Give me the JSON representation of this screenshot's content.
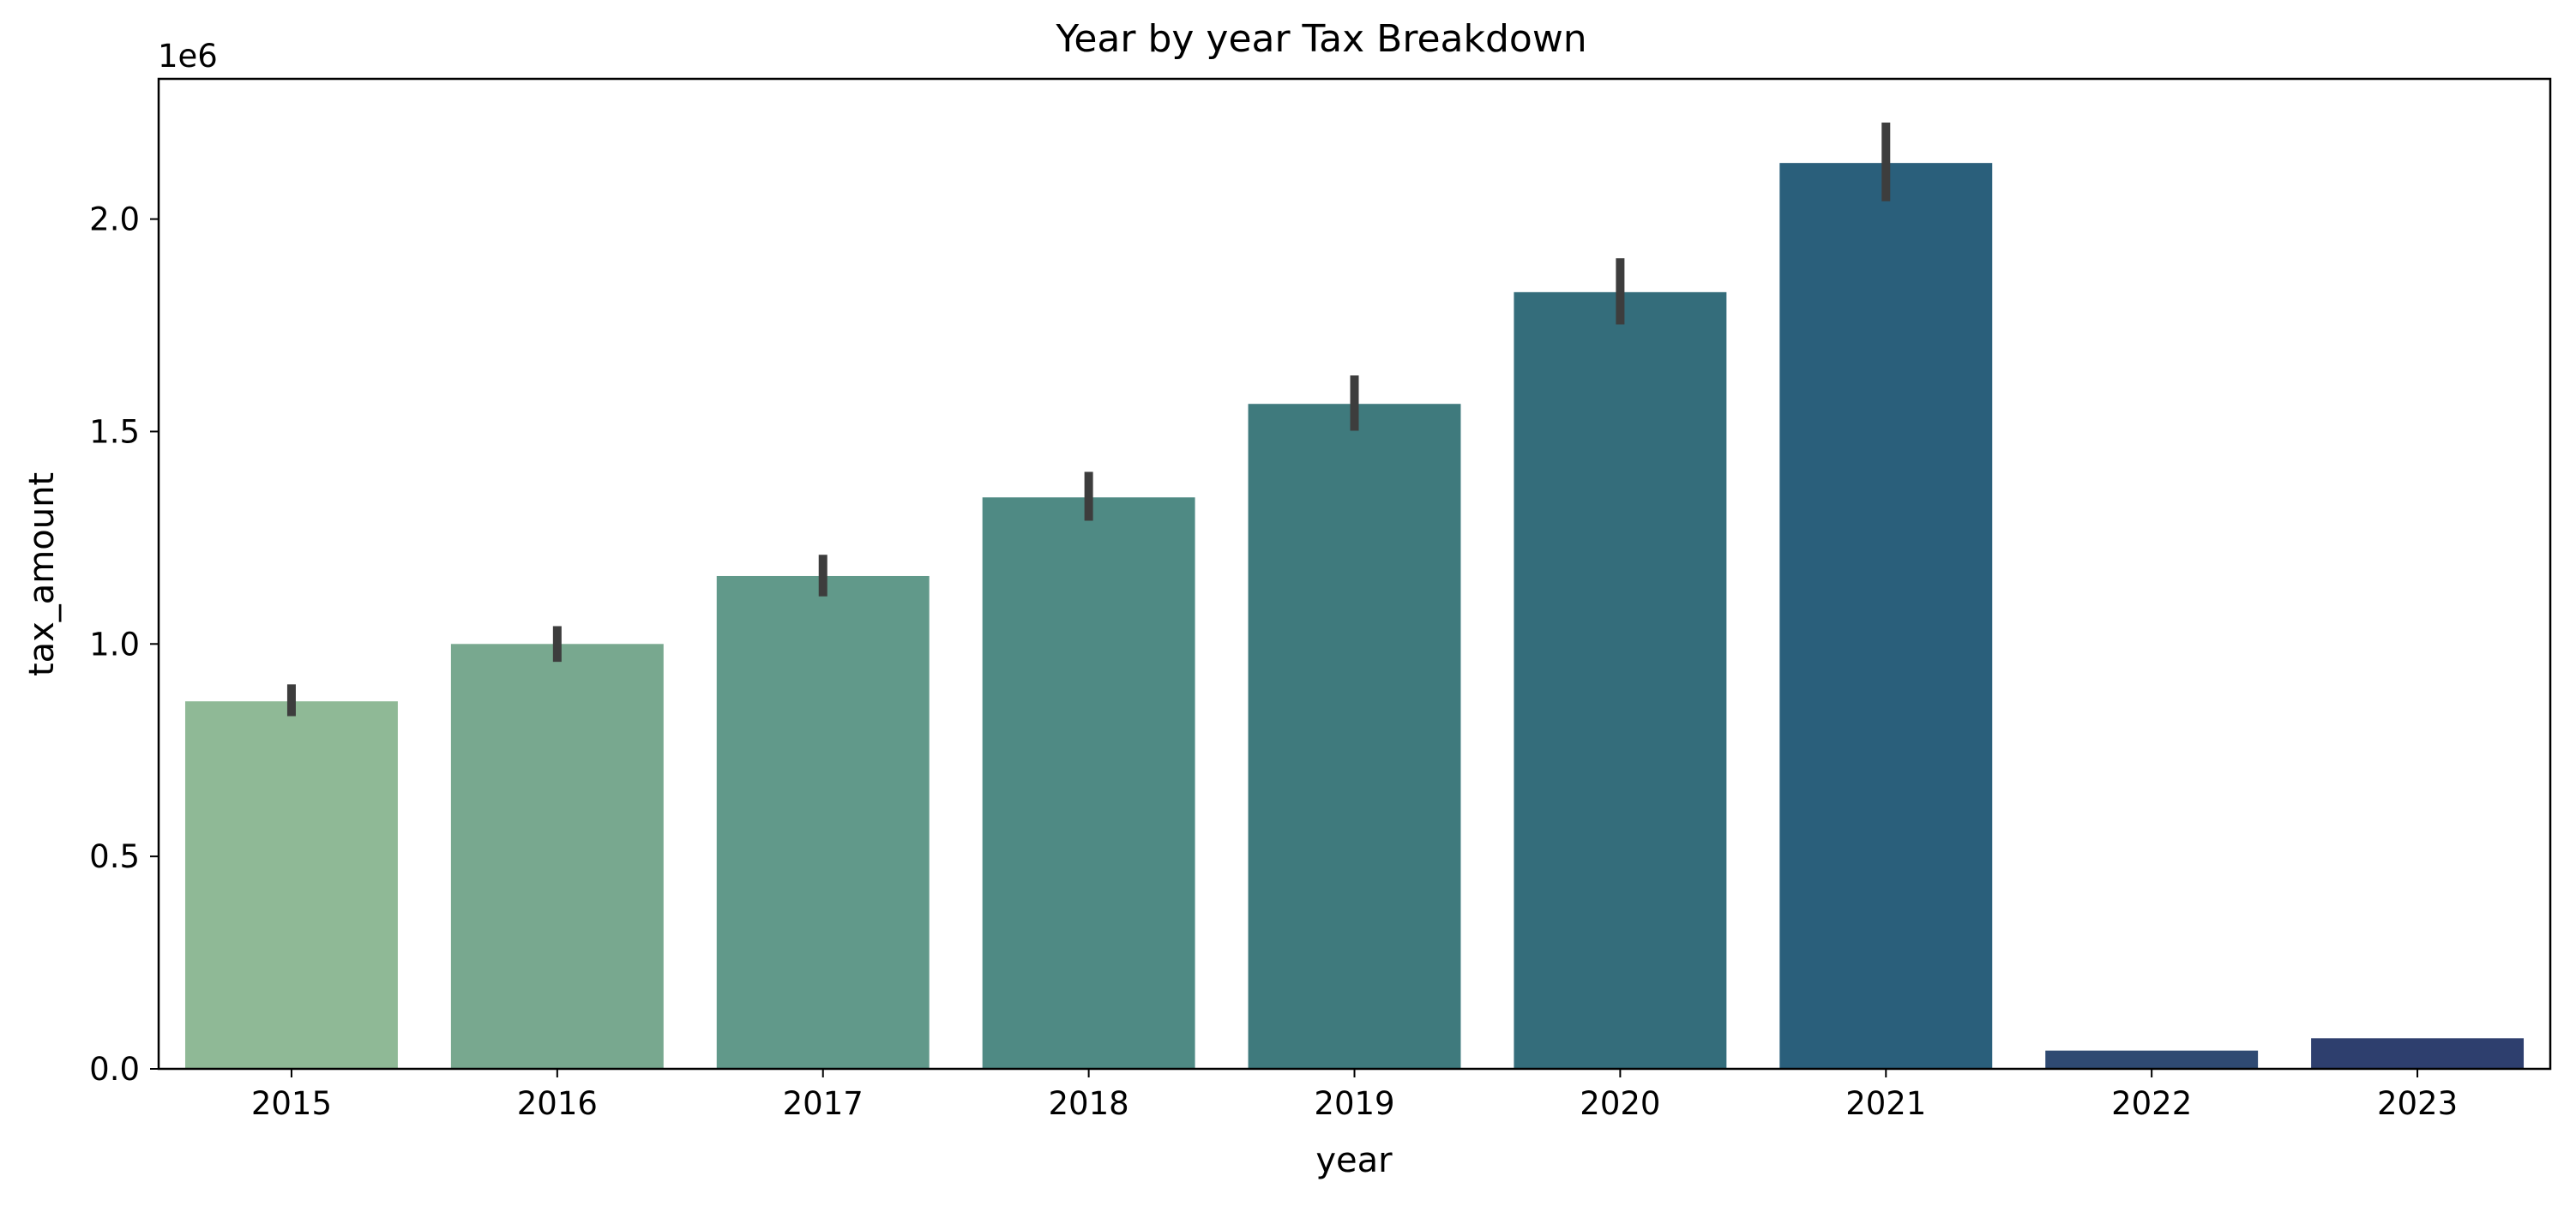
{
  "chart_data": {
    "type": "bar",
    "title": "Year by year Tax Breakdown",
    "xlabel": "year",
    "ylabel": "tax_amount",
    "y_offset_label": "1e6",
    "ylim": [
      0,
      2.33
    ],
    "yticks": [
      0.0,
      0.5,
      1.0,
      1.5,
      2.0
    ],
    "ytick_labels": [
      "0.0",
      "0.5",
      "1.0",
      "1.5",
      "2.0"
    ],
    "categories": [
      "2015",
      "2016",
      "2017",
      "2018",
      "2019",
      "2020",
      "2021",
      "2022",
      "2023"
    ],
    "values": [
      0.865,
      1.0,
      1.16,
      1.345,
      1.565,
      1.828,
      2.132,
      0.043,
      0.072
    ],
    "error_low": [
      0.83,
      0.958,
      1.112,
      1.29,
      1.502,
      1.752,
      2.042,
      null,
      null
    ],
    "error_high": [
      0.905,
      1.042,
      1.21,
      1.405,
      1.632,
      1.908,
      2.227,
      null,
      null
    ],
    "colors": [
      "#8fb996",
      "#78a88f",
      "#61998a",
      "#4f8a84",
      "#3f7a7d",
      "#346d7b",
      "#2a5f7b",
      "#2f4a72",
      "#2e3f6e"
    ],
    "error_color": "#3d3d3d",
    "grid": false,
    "legend": "none"
  }
}
